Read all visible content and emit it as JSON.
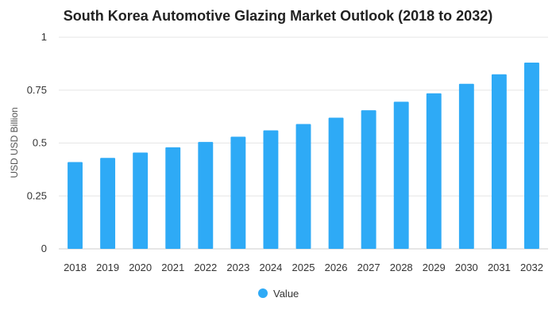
{
  "colors": {
    "bar": "#2eaaf6",
    "grid": "#e6e6e6",
    "text": "#222222"
  },
  "chart_data": {
    "type": "bar",
    "title": "South Korea Automotive Glazing Market Outlook (2018 to 2032)",
    "xlabel": "",
    "ylabel": "USD USD Billion",
    "categories": [
      "2018",
      "2019",
      "2020",
      "2021",
      "2022",
      "2023",
      "2024",
      "2025",
      "2026",
      "2027",
      "2028",
      "2029",
      "2030",
      "2031",
      "2032"
    ],
    "series": [
      {
        "name": "Value",
        "values": [
          0.41,
          0.43,
          0.455,
          0.48,
          0.505,
          0.53,
          0.56,
          0.59,
          0.62,
          0.655,
          0.695,
          0.735,
          0.78,
          0.825,
          0.88
        ]
      }
    ],
    "ylim": [
      0,
      1
    ],
    "yticks": [
      0,
      0.25,
      0.5,
      0.75,
      1
    ],
    "ytick_labels": [
      "0",
      "0.25",
      "0.5",
      "0.75",
      "1"
    ],
    "grid": true,
    "legend_position": "bottom-center"
  }
}
